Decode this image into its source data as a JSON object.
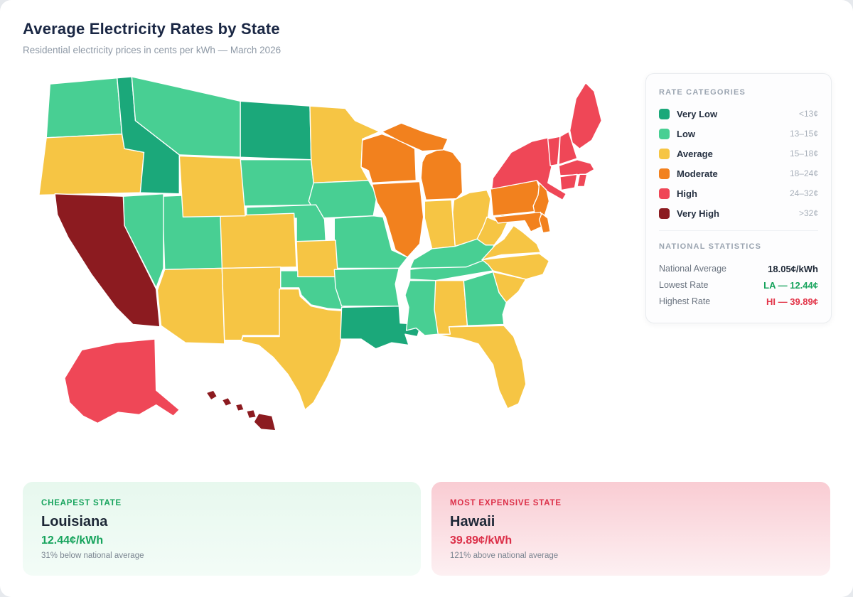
{
  "header": {
    "title": "Average Electricity Rates by State",
    "subtitle": "Residential electricity prices in cents per kWh — March 2026"
  },
  "legend": {
    "title": "RATE CATEGORIES"
  },
  "stats": {
    "title": "NATIONAL STATISTICS",
    "rows": [
      {
        "label": "National Average",
        "value": "18.05¢/kWh",
        "color": "#1f2937"
      },
      {
        "label": "Lowest Rate",
        "value": "LA — 12.44¢",
        "color": "#16a35c"
      },
      {
        "label": "Highest Rate",
        "value": "HI — 39.89¢",
        "color": "#e23448"
      }
    ]
  },
  "cards": {
    "cheapest": {
      "label": "CHEAPEST STATE",
      "state": "Louisiana",
      "value": "12.44¢/kWh",
      "note": "31% below national average",
      "color": "#16a35c"
    },
    "expensive": {
      "label": "MOST EXPENSIVE STATE",
      "state": "Hawaii",
      "value": "39.89¢/kWh",
      "note": "121% above national average",
      "color": "#dc3049"
    }
  },
  "chart_data": {
    "type": "choropleth",
    "title": "Average Electricity Rates by State",
    "unit": "cents per kWh",
    "legend_position": "right",
    "categories": [
      {
        "key": "very_low",
        "label": "Very Low",
        "range": "<13¢",
        "color": "#1ba87a"
      },
      {
        "key": "low",
        "label": "Low",
        "range": "13–15¢",
        "color": "#48cf93"
      },
      {
        "key": "average",
        "label": "Average",
        "range": "15–18¢",
        "color": "#f6c544"
      },
      {
        "key": "moderate",
        "label": "Moderate",
        "range": "18–24¢",
        "color": "#f2811e"
      },
      {
        "key": "high",
        "label": "High",
        "range": "24–32¢",
        "color": "#ef4757"
      },
      {
        "key": "very_high",
        "label": "Very High",
        "range": ">32¢",
        "color": "#8c1b20"
      }
    ],
    "state_categories": {
      "WA": "low",
      "OR": "average",
      "CA": "very_high",
      "NV": "low",
      "ID": "very_low",
      "MT": "low",
      "WY": "average",
      "UT": "low",
      "CO": "average",
      "AZ": "average",
      "NM": "average",
      "ND": "very_low",
      "SD": "low",
      "NE": "low",
      "KS": "average",
      "OK": "low",
      "TX": "average",
      "MN": "average",
      "IA": "low",
      "MO": "low",
      "AR": "low",
      "LA": "very_low",
      "WI": "moderate",
      "IL": "moderate",
      "MI": "moderate",
      "IN": "average",
      "OH": "average",
      "KY": "low",
      "TN": "low",
      "WV": "average",
      "VA": "average",
      "NC": "average",
      "SC": "average",
      "GA": "low",
      "AL": "average",
      "MS": "low",
      "FL": "average",
      "PA": "moderate",
      "NY": "high",
      "NJ": "moderate",
      "MD": "moderate",
      "DE": "moderate",
      "VT": "high",
      "NH": "high",
      "ME": "high",
      "MA": "high",
      "CT": "high",
      "RI": "high",
      "AK": "high",
      "HI": "very_high"
    },
    "national_average": 18.05,
    "lowest": {
      "state": "LA",
      "value": 12.44
    },
    "highest": {
      "state": "HI",
      "value": 39.89
    }
  }
}
